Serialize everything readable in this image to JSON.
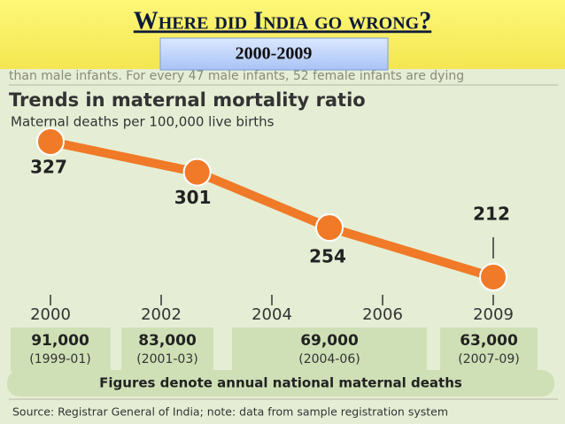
{
  "slide": {
    "title": "Where did India go wrong?",
    "subtitle": "2000-2009",
    "behind_text": "than male infants. For every 47 male infants, 52 female infants are dying"
  },
  "chart_data": {
    "type": "line",
    "title": "Trends in maternal mortality ratio",
    "subtitle": "Maternal deaths per 100,000 live births",
    "x": [
      2000,
      2002.65,
      2005.04,
      2009
    ],
    "series": [
      {
        "name": "Maternal mortality ratio",
        "color": "#f07a28",
        "values": [
          327,
          301,
          254,
          212
        ]
      }
    ],
    "xticks": [
      2000,
      2002,
      2004,
      2006,
      2009
    ]
  },
  "deaths_table": {
    "cells": [
      {
        "deaths": "91,000",
        "period": "(1999-01)"
      },
      {
        "deaths": "83,000",
        "period": "(2001-03)"
      },
      {
        "deaths": "69,000",
        "period": "(2004-06)"
      },
      {
        "deaths": "63,000",
        "period": "(2007-09)"
      }
    ],
    "note": "Figures denote annual national maternal deaths"
  },
  "source": "Source: Registrar General of India; note: data from sample registration system"
}
